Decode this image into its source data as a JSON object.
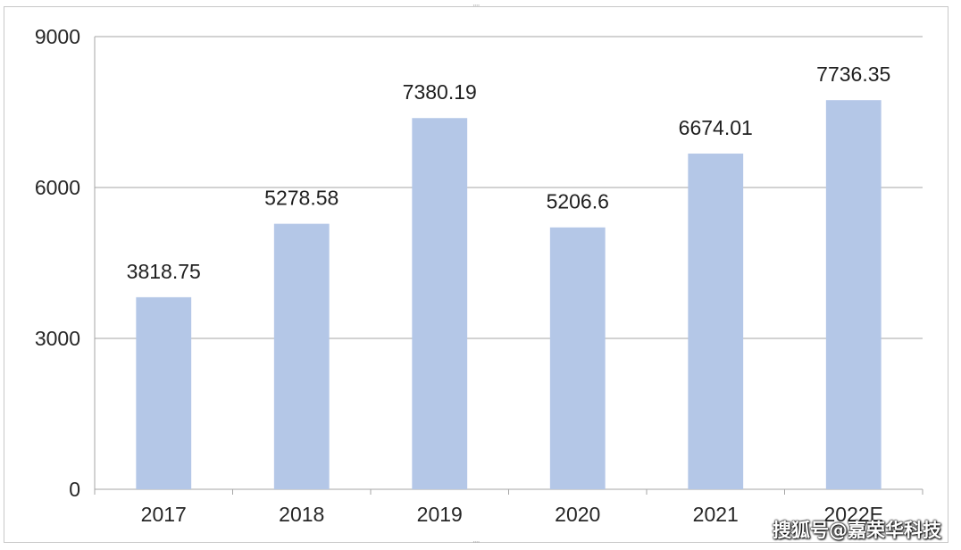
{
  "chart_data": {
    "type": "bar",
    "title": "",
    "xlabel": "",
    "ylabel": "",
    "categories": [
      "2017",
      "2018",
      "2019",
      "2020",
      "2021",
      "2022E"
    ],
    "values": [
      3818.75,
      5278.58,
      7380.19,
      5206.6,
      6674.01,
      7736.35
    ],
    "data_labels": [
      "3818.75",
      "5278.58",
      "7380.19",
      "5206.6",
      "6674.01",
      "7736.35"
    ],
    "ylim": [
      0,
      9000
    ],
    "yticks": [
      0,
      3000,
      6000,
      9000
    ],
    "grid": true,
    "legend": "none",
    "colors": {
      "bar": "#b4c7e7",
      "grid": "#a6a6a6",
      "axis": "#a6a6a6"
    }
  },
  "watermark": {
    "text": "搜狐号@嘉荣华科技"
  }
}
